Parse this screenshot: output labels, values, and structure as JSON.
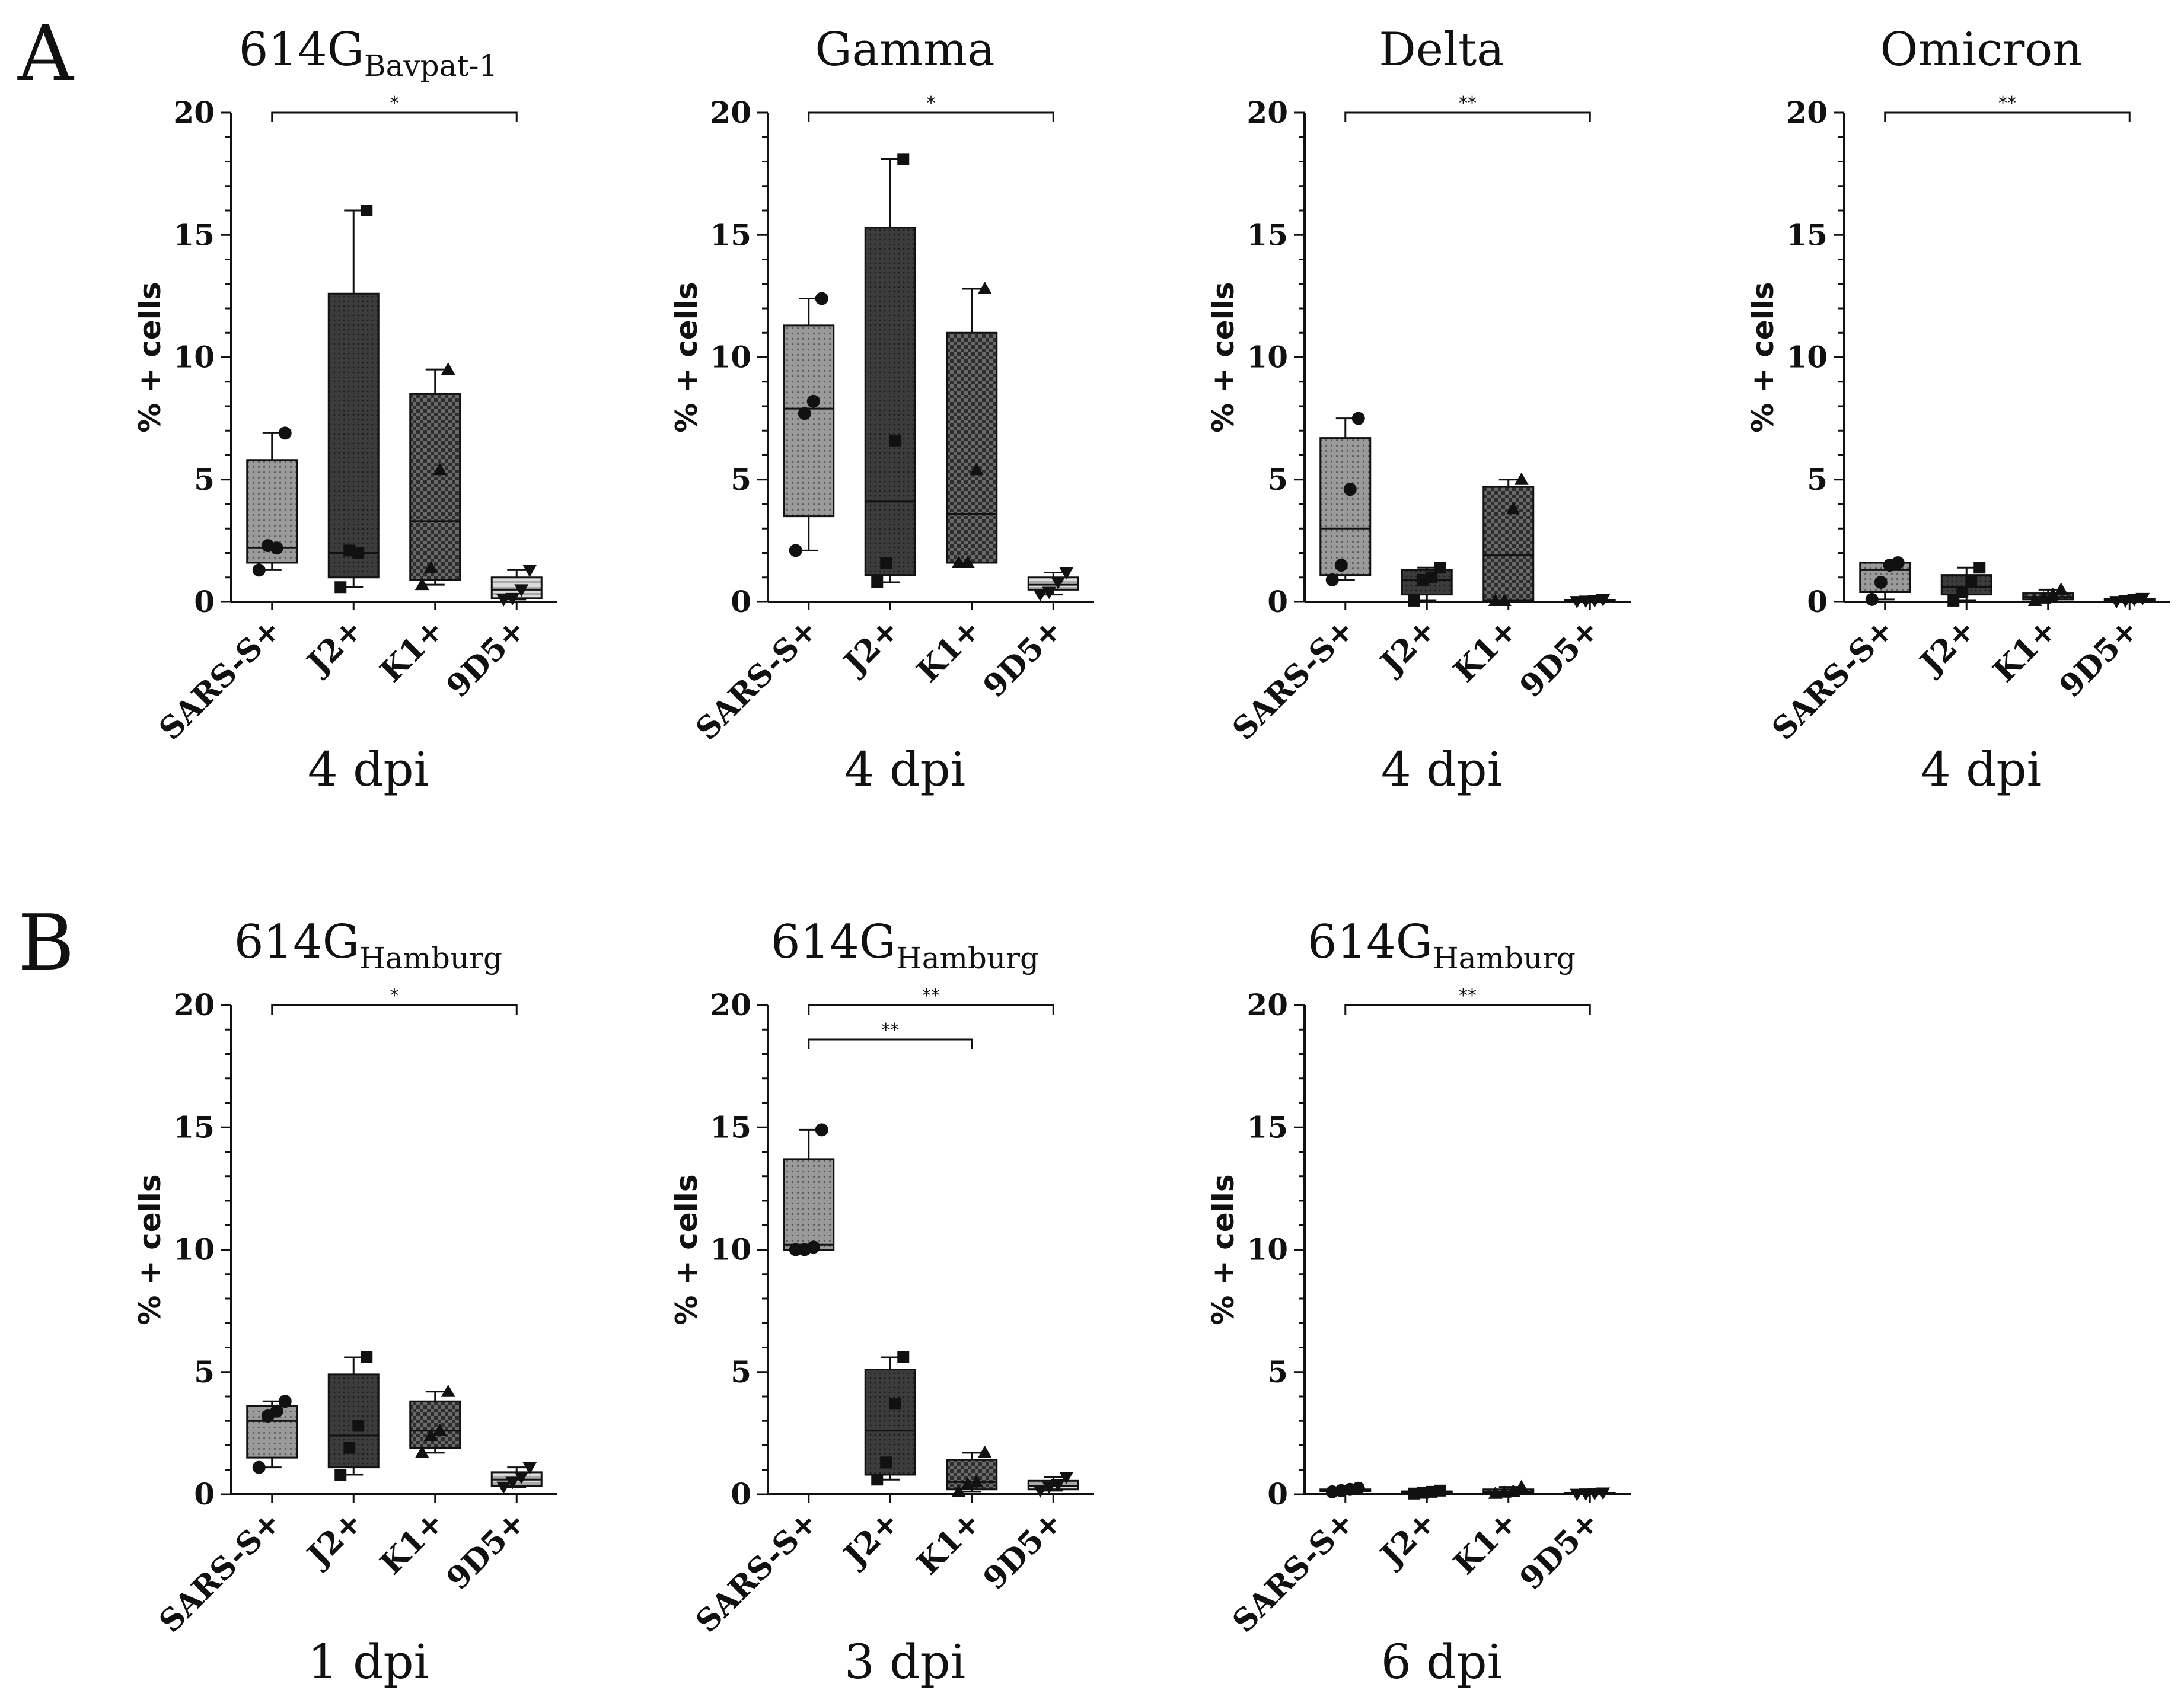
{
  "panels": [
    {
      "letter": "A"
    },
    {
      "letter": "B"
    }
  ],
  "chart_data": [
    {
      "type": "box",
      "panel": "A",
      "title": "614G",
      "title_sub": "Bavpat-1",
      "xlabel": "4 dpi",
      "ylabel": "% + cells",
      "ylim": [
        0,
        20
      ],
      "yticks": [
        0,
        5,
        10,
        15,
        20
      ],
      "categories": [
        "SARS-S+",
        "J2+",
        "K1+",
        "9D5+"
      ],
      "boxes": [
        {
          "min": 1.3,
          "q1": 1.6,
          "median": 2.2,
          "q3": 5.8,
          "max": 6.9,
          "points": [
            1.3,
            2.3,
            2.2,
            6.9
          ]
        },
        {
          "min": 0.6,
          "q1": 1.0,
          "median": 2.0,
          "q3": 12.6,
          "max": 16.0,
          "points": [
            0.6,
            2.1,
            2.0,
            16.0
          ]
        },
        {
          "min": 0.7,
          "q1": 0.9,
          "median": 3.3,
          "q3": 8.5,
          "max": 9.5,
          "points": [
            0.7,
            1.4,
            5.4,
            9.5
          ]
        },
        {
          "min": 0.1,
          "q1": 0.15,
          "median": 0.5,
          "q3": 1.0,
          "max": 1.3,
          "points": [
            0.1,
            0.15,
            0.5,
            1.3
          ]
        }
      ],
      "significance": [
        {
          "from": "SARS-S+",
          "to": "9D5+",
          "label": "*"
        }
      ]
    },
    {
      "type": "box",
      "panel": "A",
      "title": "Gamma",
      "title_sub": "",
      "xlabel": "4 dpi",
      "ylabel": "% + cells",
      "ylim": [
        0,
        20
      ],
      "yticks": [
        0,
        5,
        10,
        15,
        20
      ],
      "categories": [
        "SARS-S+",
        "J2+",
        "K1+",
        "9D5+"
      ],
      "boxes": [
        {
          "min": 2.1,
          "q1": 3.5,
          "median": 7.9,
          "q3": 11.3,
          "max": 12.4,
          "points": [
            2.1,
            7.7,
            8.2,
            12.4
          ]
        },
        {
          "min": 0.8,
          "q1": 1.1,
          "median": 4.1,
          "q3": 15.3,
          "max": 18.1,
          "points": [
            0.8,
            1.6,
            6.6,
            18.1
          ]
        },
        {
          "min": 1.6,
          "q1": 1.6,
          "median": 3.6,
          "q3": 11.0,
          "max": 12.8,
          "points": [
            1.6,
            1.6,
            5.4,
            12.8
          ]
        },
        {
          "min": 0.3,
          "q1": 0.5,
          "median": 0.7,
          "q3": 1.0,
          "max": 1.2,
          "points": [
            0.3,
            0.4,
            0.8,
            1.2
          ]
        }
      ],
      "significance": [
        {
          "from": "SARS-S+",
          "to": "9D5+",
          "label": "*"
        }
      ]
    },
    {
      "type": "box",
      "panel": "A",
      "title": "Delta",
      "title_sub": "",
      "xlabel": "4 dpi",
      "ylabel": "% + cells",
      "ylim": [
        0,
        20
      ],
      "yticks": [
        0,
        5,
        10,
        15,
        20
      ],
      "categories": [
        "SARS-S+",
        "J2+",
        "K1+",
        "9D5+"
      ],
      "boxes": [
        {
          "min": 0.9,
          "q1": 1.1,
          "median": 3.0,
          "q3": 6.7,
          "max": 7.5,
          "points": [
            0.9,
            1.5,
            4.6,
            7.5
          ]
        },
        {
          "min": 0.05,
          "q1": 0.3,
          "median": 0.9,
          "q3": 1.3,
          "max": 1.4,
          "points": [
            0.05,
            0.9,
            1.0,
            1.4
          ]
        },
        {
          "min": 0.05,
          "q1": 0.05,
          "median": 1.9,
          "q3": 4.7,
          "max": 5.0,
          "points": [
            0.05,
            0.05,
            3.8,
            5.0
          ]
        },
        {
          "min": 0.02,
          "q1": 0.03,
          "median": 0.05,
          "q3": 0.08,
          "max": 0.1,
          "points": [
            0.02,
            0.04,
            0.06,
            0.1
          ]
        }
      ],
      "significance": [
        {
          "from": "SARS-S+",
          "to": "9D5+",
          "label": "**"
        }
      ]
    },
    {
      "type": "box",
      "panel": "A",
      "title": "Omicron",
      "title_sub": "",
      "xlabel": "4 dpi",
      "ylabel": "% + cells",
      "ylim": [
        0,
        20
      ],
      "yticks": [
        0,
        5,
        10,
        15,
        20
      ],
      "categories": [
        "SARS-S+",
        "J2+",
        "K1+",
        "9D5+"
      ],
      "boxes": [
        {
          "min": 0.1,
          "q1": 0.4,
          "median": 1.3,
          "q3": 1.6,
          "max": 1.6,
          "points": [
            0.1,
            0.8,
            1.5,
            1.6
          ]
        },
        {
          "min": 0.05,
          "q1": 0.3,
          "median": 0.6,
          "q3": 1.1,
          "max": 1.4,
          "points": [
            0.05,
            0.4,
            0.8,
            1.4
          ]
        },
        {
          "min": 0.05,
          "q1": 0.1,
          "median": 0.2,
          "q3": 0.35,
          "max": 0.5,
          "points": [
            0.05,
            0.15,
            0.3,
            0.5
          ]
        },
        {
          "min": 0.02,
          "q1": 0.04,
          "median": 0.07,
          "q3": 0.12,
          "max": 0.15,
          "points": [
            0.02,
            0.05,
            0.1,
            0.15
          ]
        }
      ],
      "significance": [
        {
          "from": "SARS-S+",
          "to": "9D5+",
          "label": "**"
        }
      ]
    },
    {
      "type": "box",
      "panel": "B",
      "title": "614G",
      "title_sub": "Hamburg",
      "xlabel": "1 dpi",
      "ylabel": "% + cells",
      "ylim": [
        0,
        20
      ],
      "yticks": [
        0,
        5,
        10,
        15,
        20
      ],
      "categories": [
        "SARS-S+",
        "J2+",
        "K1+",
        "9D5+"
      ],
      "boxes": [
        {
          "min": 1.1,
          "q1": 1.5,
          "median": 3.0,
          "q3": 3.6,
          "max": 3.8,
          "points": [
            1.1,
            3.2,
            3.4,
            3.8
          ]
        },
        {
          "min": 0.8,
          "q1": 1.1,
          "median": 2.4,
          "q3": 4.9,
          "max": 5.6,
          "points": [
            0.8,
            1.9,
            2.8,
            5.6
          ]
        },
        {
          "min": 1.7,
          "q1": 1.9,
          "median": 2.6,
          "q3": 3.8,
          "max": 4.2,
          "points": [
            1.7,
            2.4,
            2.6,
            4.2
          ]
        },
        {
          "min": 0.3,
          "q1": 0.35,
          "median": 0.6,
          "q3": 0.9,
          "max": 1.1,
          "points": [
            0.3,
            0.5,
            0.7,
            1.1
          ]
        }
      ],
      "significance": [
        {
          "from": "SARS-S+",
          "to": "9D5+",
          "label": "*"
        }
      ]
    },
    {
      "type": "box",
      "panel": "B",
      "title": "614G",
      "title_sub": "Hamburg",
      "xlabel": "3 dpi",
      "ylabel": "% + cells",
      "ylim": [
        0,
        20
      ],
      "yticks": [
        0,
        5,
        10,
        15,
        20
      ],
      "categories": [
        "SARS-S+",
        "J2+",
        "K1+",
        "9D5+"
      ],
      "boxes": [
        {
          "min": 10.0,
          "q1": 10.0,
          "median": 10.2,
          "q3": 13.7,
          "max": 14.9,
          "points": [
            10.0,
            10.0,
            10.1,
            14.9
          ]
        },
        {
          "min": 0.6,
          "q1": 0.8,
          "median": 2.6,
          "q3": 5.1,
          "max": 5.6,
          "points": [
            0.6,
            1.3,
            3.7,
            5.6
          ]
        },
        {
          "min": 0.1,
          "q1": 0.2,
          "median": 0.5,
          "q3": 1.4,
          "max": 1.7,
          "points": [
            0.1,
            0.4,
            0.5,
            1.7
          ]
        },
        {
          "min": 0.15,
          "q1": 0.2,
          "median": 0.35,
          "q3": 0.55,
          "max": 0.7,
          "points": [
            0.15,
            0.3,
            0.4,
            0.7
          ]
        }
      ],
      "significance": [
        {
          "from": "SARS-S+",
          "to": "9D5+",
          "label": "**"
        },
        {
          "from": "SARS-S+",
          "to": "K1+",
          "label": "**"
        }
      ]
    },
    {
      "type": "box",
      "panel": "B",
      "title": "614G",
      "title_sub": "Hamburg",
      "xlabel": "6 dpi",
      "ylabel": "% + cells",
      "ylim": [
        0,
        20
      ],
      "yticks": [
        0,
        5,
        10,
        15,
        20
      ],
      "categories": [
        "SARS-S+",
        "J2+",
        "K1+",
        "9D5+"
      ],
      "boxes": [
        {
          "min": 0.1,
          "q1": 0.12,
          "median": 0.15,
          "q3": 0.2,
          "max": 0.25,
          "points": [
            0.1,
            0.15,
            0.2,
            0.25
          ]
        },
        {
          "min": 0.03,
          "q1": 0.05,
          "median": 0.08,
          "q3": 0.12,
          "max": 0.15,
          "points": [
            0.03,
            0.06,
            0.1,
            0.15
          ]
        },
        {
          "min": 0.03,
          "q1": 0.06,
          "median": 0.1,
          "q3": 0.2,
          "max": 0.3,
          "points": [
            0.03,
            0.08,
            0.12,
            0.3
          ]
        },
        {
          "min": 0.01,
          "q1": 0.02,
          "median": 0.03,
          "q3": 0.05,
          "max": 0.06,
          "points": [
            0.01,
            0.02,
            0.04,
            0.06
          ]
        }
      ],
      "significance": [
        {
          "from": "SARS-S+",
          "to": "9D5+",
          "label": "**"
        }
      ]
    }
  ],
  "style": {
    "box_colors": [
      "#8a8a8a",
      "#3a3a3a",
      "#555555",
      "#c4c4c4"
    ],
    "ink": "#111111"
  }
}
